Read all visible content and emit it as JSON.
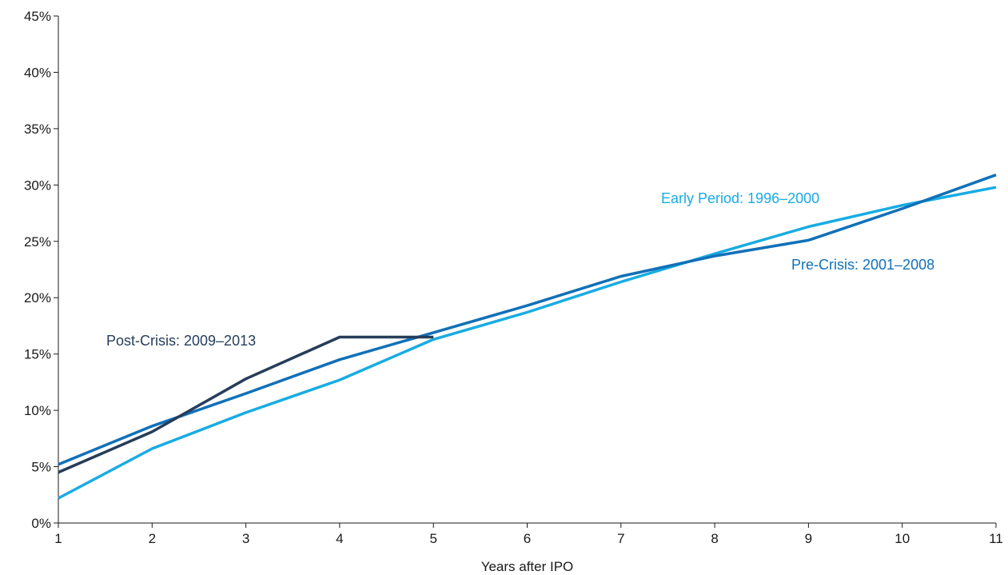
{
  "chart_data": {
    "type": "line",
    "title": "",
    "xlabel": "Years after IPO",
    "ylabel": "",
    "xlim": [
      1,
      11
    ],
    "ylim": [
      0,
      45
    ],
    "x_ticks": [
      "1",
      "2",
      "3",
      "4",
      "5",
      "6",
      "7",
      "8",
      "9",
      "10",
      "11"
    ],
    "y_ticks": [
      "0%",
      "5%",
      "10%",
      "15%",
      "20%",
      "25%",
      "30%",
      "35%",
      "40%",
      "45%"
    ],
    "grid": false,
    "legend": "none (series labeled inline)",
    "series": [
      {
        "name": "Early Period: 1996–2000",
        "color": "#18ACE2",
        "x": [
          1,
          2,
          3,
          4,
          5,
          6,
          7,
          8,
          9,
          10,
          11
        ],
        "values": [
          2.2,
          6.6,
          9.8,
          12.7,
          16.3,
          18.7,
          21.4,
          23.9,
          26.3,
          28.2,
          29.8
        ]
      },
      {
        "name": "Pre-Crisis: 2001–2008",
        "color": "#1170B8",
        "x": [
          1,
          2,
          3,
          4,
          5,
          6,
          7,
          8,
          9,
          10,
          11
        ],
        "values": [
          5.2,
          8.6,
          11.5,
          14.5,
          16.9,
          19.3,
          21.9,
          23.7,
          25.1,
          27.9,
          30.9
        ]
      },
      {
        "name": "Post-Crisis: 2009–2013",
        "color": "#263D5A",
        "x": [
          1,
          2,
          3,
          4,
          5
        ],
        "values": [
          4.5,
          8.1,
          12.8,
          16.5,
          16.5
        ]
      }
    ]
  }
}
